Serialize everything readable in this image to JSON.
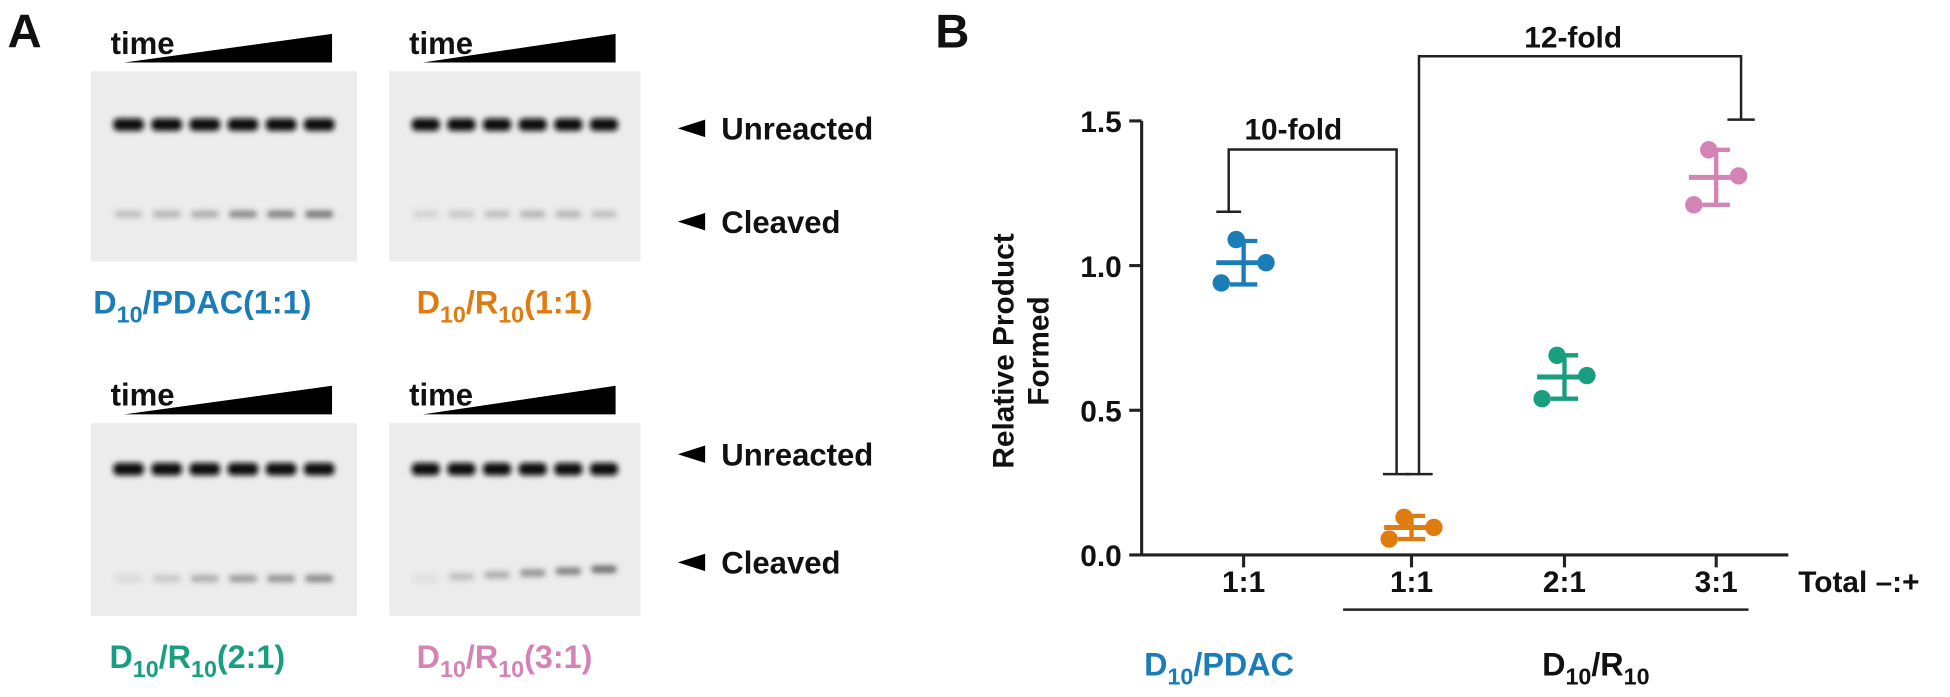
{
  "panel_a": {
    "letter": "A",
    "gels": [
      {
        "time": "time",
        "label": [
          "D",
          "10",
          "/PDAC(1:1)"
        ],
        "color": "#1a7db8"
      },
      {
        "time": "time",
        "label": [
          "D",
          "10",
          "/R",
          "10",
          "(1:1)"
        ],
        "color": "#e07b10"
      },
      {
        "time": "time",
        "label": [
          "D",
          "10",
          "/R",
          "10",
          "(2:1)"
        ],
        "color": "#1a9e80"
      },
      {
        "time": "time",
        "label": [
          "D",
          "10",
          "/R",
          "10",
          "(3:1)"
        ],
        "color": "#d484b4"
      }
    ],
    "rows": [
      {
        "unreacted": "Unreacted",
        "cleaved": "Cleaved"
      },
      {
        "unreacted": "Unreacted",
        "cleaved": "Cleaved"
      }
    ]
  },
  "panel_b_letter": "B",
  "chart_data": {
    "type": "dotplot",
    "y_label": [
      "Relative Product",
      "Formed"
    ],
    "categories": [
      "1:1",
      "1:1",
      "2:1",
      "3:1"
    ],
    "x_label": "Total –:+",
    "colors": [
      "#1a7db8",
      "#e07b10",
      "#1a9e80",
      "#d484b4"
    ],
    "points": [
      [
        1.09,
        1.01,
        0.94
      ],
      [
        0.13,
        0.095,
        0.055
      ],
      [
        0.69,
        0.62,
        0.54
      ],
      [
        1.4,
        1.31,
        1.21
      ]
    ],
    "mean": [
      1.01,
      0.095,
      0.615,
      1.305
    ],
    "sd": [
      0.075,
      0.04,
      0.075,
      0.095
    ],
    "ylim": [
      0,
      1.5
    ],
    "yticks": [
      {
        "value": 0,
        "label": "0.0"
      },
      0.5,
      {
        "value": 1,
        "label": "1.0"
      },
      1.5
    ],
    "annotations": [
      "10-fold",
      "12-fold"
    ],
    "group_labels": [
      {
        "parts": [
          "D",
          "10",
          "/PDAC"
        ],
        "color": "#1a7db8"
      },
      {
        "parts": [
          "D",
          "10",
          "/R",
          "10"
        ],
        "color": "#111111"
      }
    ]
  }
}
